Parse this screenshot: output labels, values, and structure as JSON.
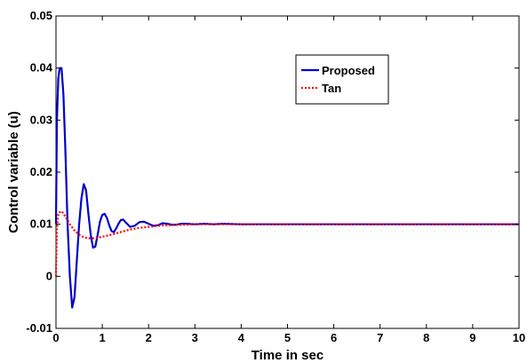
{
  "chart_data": {
    "type": "line",
    "xlabel": "Time in sec",
    "ylabel": "Control variable (u)",
    "xlim": [
      0,
      10
    ],
    "ylim": [
      -0.01,
      0.05
    ],
    "xticks": [
      0,
      1,
      2,
      3,
      4,
      5,
      6,
      7,
      8,
      9,
      10
    ],
    "xtick_labels": [
      "0",
      "1",
      "2",
      "3",
      "4",
      "5",
      "6",
      "7",
      "8",
      "9",
      "10"
    ],
    "yticks": [
      -0.01,
      0,
      0.01,
      0.02,
      0.03,
      0.04,
      0.05
    ],
    "ytick_labels": [
      "-0.01",
      "0",
      "0.01",
      "0.02",
      "0.03",
      "0.04",
      "0.05"
    ],
    "grid": false,
    "legend_position": "top-right",
    "series": [
      {
        "name": "Proposed",
        "color": "#0000cc",
        "style": "solid",
        "x": [
          0,
          0.02,
          0.05,
          0.08,
          0.12,
          0.16,
          0.2,
          0.25,
          0.3,
          0.35,
          0.4,
          0.45,
          0.5,
          0.55,
          0.6,
          0.65,
          0.7,
          0.75,
          0.8,
          0.85,
          0.9,
          0.95,
          1.0,
          1.05,
          1.1,
          1.15,
          1.2,
          1.25,
          1.3,
          1.35,
          1.4,
          1.45,
          1.5,
          1.6,
          1.7,
          1.8,
          1.9,
          2.0,
          2.1,
          2.2,
          2.3,
          2.4,
          2.5,
          2.6,
          2.7,
          2.8,
          3.0,
          3.2,
          3.4,
          3.6,
          4.0,
          5.0,
          6.0,
          7.0,
          8.0,
          9.0,
          10.0
        ],
        "y": [
          0.01,
          0.03,
          0.038,
          0.04,
          0.04,
          0.035,
          0.025,
          0.01,
          0.0,
          -0.006,
          -0.004,
          0.003,
          0.01,
          0.015,
          0.0177,
          0.0165,
          0.012,
          0.008,
          0.0055,
          0.0057,
          0.008,
          0.0105,
          0.0118,
          0.012,
          0.0112,
          0.0098,
          0.0087,
          0.0085,
          0.0092,
          0.0101,
          0.0108,
          0.0109,
          0.0104,
          0.0095,
          0.0097,
          0.0104,
          0.0105,
          0.0101,
          0.0097,
          0.0098,
          0.0102,
          0.0101,
          0.0099,
          0.0099,
          0.0101,
          0.0101,
          0.01,
          0.0101,
          0.01,
          0.0101,
          0.01,
          0.01,
          0.01,
          0.01,
          0.01,
          0.01,
          0.01
        ]
      },
      {
        "name": "Tan",
        "color": "#ff0000",
        "style": "dotted",
        "x": [
          0,
          0.02,
          0.05,
          0.1,
          0.15,
          0.2,
          0.3,
          0.4,
          0.5,
          0.6,
          0.7,
          0.8,
          0.9,
          1.0,
          1.2,
          1.4,
          1.6,
          1.8,
          2.0,
          2.2,
          2.4,
          2.6,
          2.8,
          3.0,
          3.5,
          4.0,
          5.0,
          6.0,
          7.0,
          8.0,
          9.0,
          10.0
        ],
        "y": [
          0,
          0.009,
          0.012,
          0.0125,
          0.0122,
          0.0115,
          0.01,
          0.0088,
          0.008,
          0.0075,
          0.0073,
          0.0073,
          0.0074,
          0.0076,
          0.008,
          0.0085,
          0.009,
          0.0093,
          0.0095,
          0.0097,
          0.0098,
          0.0099,
          0.0099,
          0.01,
          0.01,
          0.01,
          0.01,
          0.01,
          0.01,
          0.01,
          0.01,
          0.01
        ]
      }
    ]
  }
}
